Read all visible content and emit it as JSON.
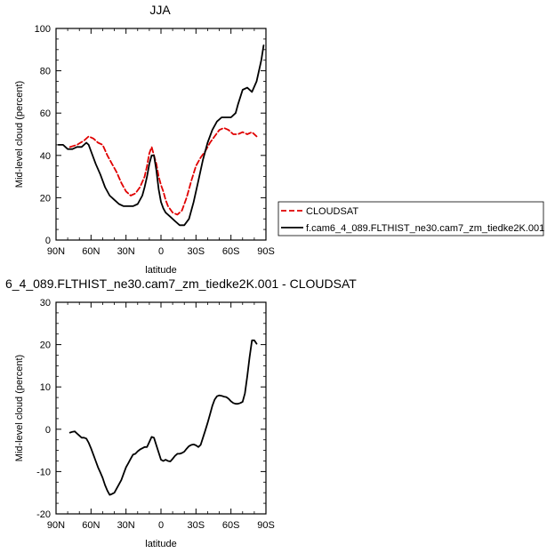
{
  "chart_data": [
    {
      "type": "line",
      "title": "JJA",
      "xlabel": "latitude",
      "ylabel": "Mid-level cloud (percent)",
      "xlim": [
        90,
        -90
      ],
      "ylim": [
        0,
        100
      ],
      "x_ticks": [
        90,
        60,
        30,
        0,
        -30,
        -60,
        -90
      ],
      "x_tick_labels": [
        "90N",
        "60N",
        "30N",
        "0",
        "30S",
        "60S",
        "90S"
      ],
      "y_ticks": [
        0,
        20,
        40,
        60,
        80,
        100
      ],
      "y_tick_labels": [
        "0",
        "20",
        "40",
        "60",
        "80",
        "100"
      ],
      "legend_position": "right",
      "series": [
        {
          "name": "CLOUDSAT",
          "color": "#e00000",
          "dash": "dashed",
          "x": [
            78,
            72,
            66,
            62,
            58,
            54,
            50,
            46,
            42,
            38,
            34,
            30,
            26,
            22,
            18,
            14,
            12,
            10,
            8,
            6,
            4,
            2,
            0,
            -2,
            -4,
            -6,
            -10,
            -14,
            -18,
            -22,
            -26,
            -30,
            -34,
            -38,
            -42,
            -46,
            -50,
            -54,
            -58,
            -62,
            -66,
            -70,
            -74,
            -78,
            -82
          ],
          "y": [
            44,
            45,
            47,
            49,
            48,
            46,
            45,
            40,
            36,
            32,
            27,
            23,
            21,
            22,
            25,
            30,
            35,
            41,
            44,
            40,
            36,
            30,
            26,
            23,
            19,
            16,
            13,
            12,
            14,
            20,
            28,
            35,
            39,
            42,
            46,
            49,
            52,
            53,
            52,
            50,
            50,
            51,
            50,
            51,
            49
          ]
        },
        {
          "name": "f.cam6_4_089.FLTHIST_ne30.cam7_zm_tiedke2K.001",
          "color": "#000000",
          "dash": "solid",
          "x": [
            88,
            84,
            80,
            76,
            72,
            68,
            64,
            62,
            60,
            56,
            52,
            48,
            44,
            40,
            36,
            32,
            28,
            24,
            20,
            16,
            14,
            12,
            10,
            8,
            6,
            4,
            2,
            0,
            -2,
            -4,
            -8,
            -12,
            -16,
            -20,
            -24,
            -28,
            -32,
            -36,
            -40,
            -44,
            -48,
            -52,
            -56,
            -60,
            -64,
            -66,
            -70,
            -74,
            -78,
            -82,
            -86,
            -88
          ],
          "y": [
            45,
            45,
            43,
            43,
            44,
            44,
            46,
            45,
            42,
            36,
            31,
            25,
            21,
            19,
            17,
            16,
            16,
            16,
            17,
            21,
            25,
            30,
            36,
            40,
            40,
            33,
            24,
            18,
            15,
            13,
            11,
            9,
            7,
            7,
            10,
            18,
            28,
            38,
            46,
            52,
            56,
            58,
            58,
            58,
            60,
            64,
            71,
            72,
            70,
            75,
            85,
            92
          ]
        }
      ]
    },
    {
      "type": "line",
      "title": "6_4_089.FLTHIST_ne30.cam7_zm_tiedke2K.001 - CLOUDSAT",
      "xlabel": "latitude",
      "ylabel": "Mid-level cloud (percent)",
      "xlim": [
        90,
        -90
      ],
      "ylim": [
        -20,
        30
      ],
      "x_ticks": [
        90,
        60,
        30,
        0,
        -30,
        -60,
        -90
      ],
      "x_tick_labels": [
        "90N",
        "60N",
        "30N",
        "0",
        "30S",
        "60S",
        "90S"
      ],
      "y_ticks": [
        -20,
        -10,
        0,
        10,
        20,
        30
      ],
      "y_tick_labels": [
        "-20",
        "-10",
        "0",
        "10",
        "20",
        "30"
      ],
      "series": [
        {
          "color": "#000000",
          "dash": "solid",
          "x": [
            78,
            76,
            74,
            72,
            70,
            68,
            66,
            64,
            62,
            60,
            58,
            56,
            54,
            52,
            50,
            48,
            46,
            44,
            42,
            40,
            38,
            36,
            34,
            32,
            30,
            28,
            26,
            24,
            22,
            20,
            18,
            16,
            14,
            12,
            10,
            8,
            6,
            4,
            2,
            0,
            -2,
            -4,
            -6,
            -8,
            -10,
            -12,
            -14,
            -16,
            -18,
            -20,
            -22,
            -24,
            -26,
            -28,
            -30,
            -32,
            -34,
            -36,
            -38,
            -40,
            -42,
            -44,
            -46,
            -48,
            -50,
            -52,
            -54,
            -56,
            -58,
            -60,
            -62,
            -64,
            -66,
            -68,
            -70,
            -72,
            -74,
            -76,
            -78,
            -80,
            -82
          ],
          "y": [
            -0.8,
            -0.6,
            -0.5,
            -1.0,
            -1.5,
            -2.0,
            -2.0,
            -2.2,
            -3.2,
            -4.5,
            -6.0,
            -7.5,
            -9.0,
            -10.2,
            -11.5,
            -13.2,
            -14.5,
            -15.5,
            -15.3,
            -15.0,
            -14.0,
            -13.0,
            -12.0,
            -10.5,
            -9.0,
            -8.0,
            -7.0,
            -6.0,
            -5.8,
            -5.2,
            -4.8,
            -4.5,
            -4.2,
            -4.2,
            -3.0,
            -1.8,
            -2.0,
            -3.8,
            -5.5,
            -7.2,
            -7.5,
            -7.2,
            -7.5,
            -7.6,
            -7.0,
            -6.3,
            -5.8,
            -5.8,
            -5.6,
            -5.3,
            -4.6,
            -4.0,
            -3.7,
            -3.6,
            -3.8,
            -4.2,
            -3.7,
            -2.0,
            -0.3,
            1.5,
            3.5,
            5.5,
            7.0,
            7.8,
            8.0,
            7.9,
            7.7,
            7.6,
            7.2,
            6.6,
            6.2,
            6.0,
            6.0,
            6.2,
            6.5,
            8.5,
            12.5,
            17.0,
            21.0,
            21.0,
            20.2
          ]
        }
      ]
    }
  ]
}
